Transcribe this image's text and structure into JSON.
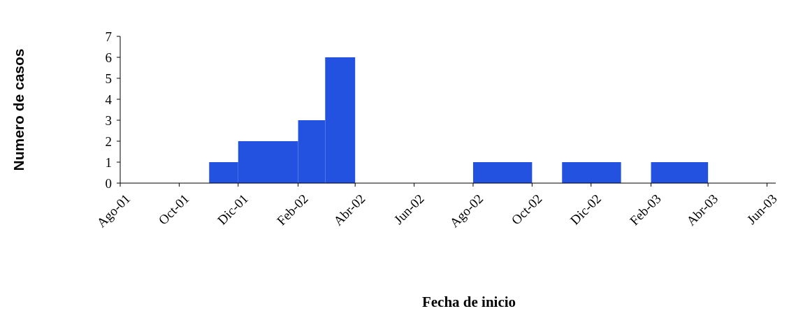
{
  "chart_data": {
    "type": "histogram",
    "xlabel": "Fecha de inicio",
    "ylabel": "Numero de casos",
    "bins": [
      "2001-11",
      "2001-12",
      "2002-02",
      "2002-03",
      "2002-04",
      "2002-08",
      "2002-10",
      "2002-11",
      "2003-01",
      "2003-02",
      "2003-04"
    ],
    "values": [
      1,
      2,
      3,
      6,
      0,
      1,
      0,
      1,
      0,
      1
    ],
    "color": "#2352e0",
    "xlim": [
      "2001-08",
      "2003-06-10"
    ],
    "xticks": [
      {
        "value": "2001-08",
        "label": "Ago-01"
      },
      {
        "value": "2001-10",
        "label": "Oct-01"
      },
      {
        "value": "2001-12",
        "label": "Dic-01"
      },
      {
        "value": "2002-02",
        "label": "Feb-02"
      },
      {
        "value": "2002-04",
        "label": "Abr-02"
      },
      {
        "value": "2002-06",
        "label": "Jun-02"
      },
      {
        "value": "2002-08",
        "label": "Ago-02"
      },
      {
        "value": "2002-10",
        "label": "Oct-02"
      },
      {
        "value": "2002-12",
        "label": "Dic-02"
      },
      {
        "value": "2003-02",
        "label": "Feb-03"
      },
      {
        "value": "2003-04",
        "label": "Abr-03"
      },
      {
        "value": "2003-06",
        "label": "Jun-03"
      }
    ],
    "ylim": [
      0,
      7
    ],
    "yticks": [
      0,
      1,
      2,
      3,
      4,
      5,
      6,
      7
    ],
    "grid": false
  }
}
